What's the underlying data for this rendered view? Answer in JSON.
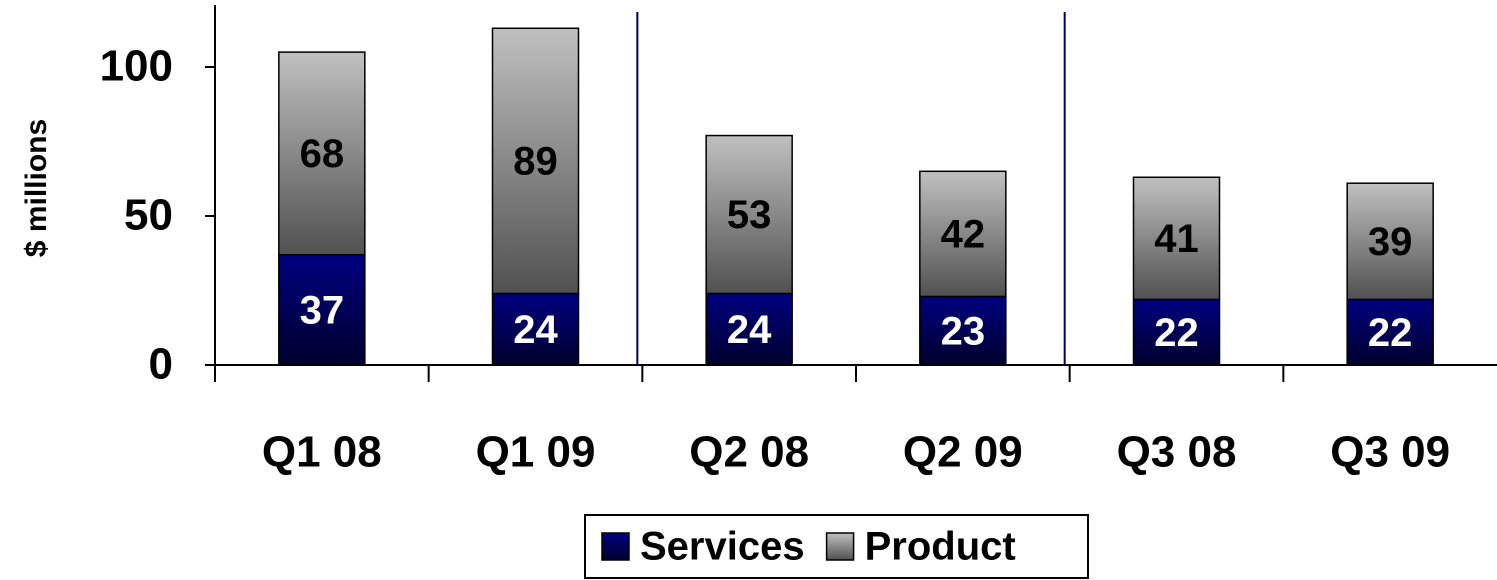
{
  "chart_data": {
    "type": "stacked_bar",
    "y_label": "$ millions",
    "categories": [
      "Q1 08",
      "Q1 09",
      "Q2 08",
      "Q2 09",
      "Q3 08",
      "Q3 09"
    ],
    "series": [
      {
        "name": "Services",
        "color": "#000080",
        "values": [
          37,
          24,
          24,
          23,
          22,
          22
        ]
      },
      {
        "name": "Product",
        "color": "#c0c0c0",
        "values": [
          68,
          89,
          53,
          42,
          41,
          39
        ]
      }
    ],
    "ylim": [
      0,
      120
    ],
    "yticks": [
      0,
      50,
      100
    ],
    "legend": "bottom"
  }
}
